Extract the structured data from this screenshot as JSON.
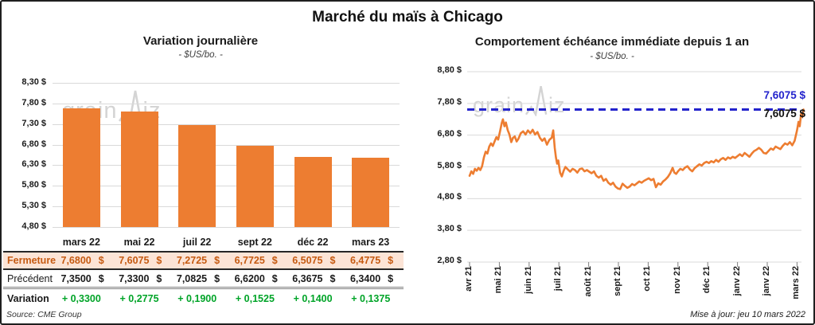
{
  "header": {
    "title": "Marché du maïs à Chicago"
  },
  "watermark": {
    "part1": "grain",
    "part2": "iz"
  },
  "source": {
    "text": "Source: CME Group"
  },
  "footer": {
    "updated": "Mise à jour: jeu 10 mars 2022"
  },
  "colors": {
    "orange": "#ED7D31",
    "grid": "#d9d9d9",
    "tick": "#7f7f7f",
    "close_bg": "#FCE4D6",
    "close_text": "#C55A11",
    "variation_green": "#00A428",
    "ref_blue": "#2323CC"
  },
  "table": {
    "columns": [
      "mars 22",
      "mai 22",
      "juil 22",
      "sept 22",
      "déc 22",
      "mars 23"
    ],
    "rows": [
      {
        "id": "close",
        "label": "Fermeture",
        "unit": "$",
        "values": [
          "7,6800",
          "7,6075",
          "7,2725",
          "6,7725",
          "6,5075",
          "6,4775"
        ]
      },
      {
        "id": "previous",
        "label": "Précédent",
        "unit": "$",
        "values": [
          "7,3500",
          "7,3300",
          "7,0825",
          "6,6200",
          "6,3675",
          "6,3400"
        ]
      },
      {
        "id": "variation",
        "label": "Variation",
        "unit": "",
        "values": [
          "+ 0,3300",
          "+ 0,2775",
          "+ 0,1900",
          "+ 0,1525",
          "+ 0,1400",
          "+ 0,1375"
        ]
      }
    ]
  },
  "chart_data": [
    {
      "type": "bar",
      "title": "Variation journalière",
      "subtitle": "- $US/bo. -",
      "categories": [
        "mars 22",
        "mai 22",
        "juil 22",
        "sept 22",
        "déc 22",
        "mars 23"
      ],
      "values": [
        7.68,
        7.6075,
        7.2725,
        6.7725,
        6.5075,
        6.4775
      ],
      "ylabel": "$US/bo.",
      "ylim": [
        4.8,
        8.3
      ],
      "y_tick_step": 0.5,
      "y_tick_labels": [
        "8,30 $",
        "7,80 $",
        "7,30 $",
        "6,80 $",
        "6,30 $",
        "5,80 $",
        "5,30 $",
        "4,80 $"
      ],
      "grid": true,
      "legend": "none"
    },
    {
      "type": "line",
      "title": "Comportement échéance immédiate depuis 1 an",
      "subtitle": "- $US/bo. -",
      "ylabel": "$US/bo.",
      "ylim": [
        2.8,
        8.8
      ],
      "y_tick_step": 1.0,
      "y_tick_labels": [
        "8,80 $",
        "7,80 $",
        "6,80 $",
        "5,80 $",
        "4,80 $",
        "3,80 $",
        "2,80 $"
      ],
      "x_tick_labels": [
        "avr 21",
        "mai 21",
        "juin 21",
        "juil 21",
        "août 21",
        "sept 21",
        "oct 21",
        "nov 21",
        "déc 21",
        "janv 22",
        "janv 22",
        "mars 22"
      ],
      "grid": true,
      "legend": "none",
      "ref_line": {
        "value": 7.6075,
        "label_above": "7,6075 $",
        "label_below": "7,6075 $"
      },
      "series": [
        {
          "name": "échéance immédiate",
          "points": [
            [
              0.0,
              5.52
            ],
            [
              0.06,
              5.66
            ],
            [
              0.12,
              5.58
            ],
            [
              0.18,
              5.74
            ],
            [
              0.24,
              5.68
            ],
            [
              0.3,
              5.77
            ],
            [
              0.36,
              5.7
            ],
            [
              0.42,
              5.82
            ],
            [
              0.48,
              6.1
            ],
            [
              0.54,
              6.28
            ],
            [
              0.6,
              6.22
            ],
            [
              0.66,
              6.44
            ],
            [
              0.72,
              6.54
            ],
            [
              0.78,
              6.46
            ],
            [
              0.84,
              6.6
            ],
            [
              0.9,
              6.74
            ],
            [
              0.96,
              6.66
            ],
            [
              1.02,
              6.9
            ],
            [
              1.08,
              7.18
            ],
            [
              1.12,
              7.3
            ],
            [
              1.17,
              7.08
            ],
            [
              1.22,
              7.2
            ],
            [
              1.28,
              6.96
            ],
            [
              1.34,
              6.82
            ],
            [
              1.4,
              6.58
            ],
            [
              1.46,
              6.72
            ],
            [
              1.52,
              6.76
            ],
            [
              1.58,
              6.6
            ],
            [
              1.64,
              6.68
            ],
            [
              1.72,
              6.86
            ],
            [
              1.8,
              6.92
            ],
            [
              1.88,
              6.82
            ],
            [
              1.96,
              6.95
            ],
            [
              2.04,
              6.86
            ],
            [
              2.12,
              6.97
            ],
            [
              2.2,
              6.82
            ],
            [
              2.28,
              6.9
            ],
            [
              2.36,
              6.72
            ],
            [
              2.44,
              6.62
            ],
            [
              2.52,
              6.7
            ],
            [
              2.6,
              6.5
            ],
            [
              2.68,
              6.65
            ],
            [
              2.76,
              6.72
            ],
            [
              2.81,
              6.95
            ],
            [
              2.86,
              6.4
            ],
            [
              2.9,
              6.1
            ],
            [
              2.94,
              5.9
            ],
            [
              2.98,
              6.0
            ],
            [
              3.04,
              5.62
            ],
            [
              3.1,
              5.5
            ],
            [
              3.16,
              5.68
            ],
            [
              3.22,
              5.8
            ],
            [
              3.3,
              5.72
            ],
            [
              3.38,
              5.65
            ],
            [
              3.46,
              5.74
            ],
            [
              3.54,
              5.7
            ],
            [
              3.62,
              5.62
            ],
            [
              3.7,
              5.73
            ],
            [
              3.78,
              5.75
            ],
            [
              3.86,
              5.66
            ],
            [
              3.94,
              5.7
            ],
            [
              4.02,
              5.65
            ],
            [
              4.1,
              5.6
            ],
            [
              4.18,
              5.66
            ],
            [
              4.26,
              5.52
            ],
            [
              4.34,
              5.46
            ],
            [
              4.42,
              5.52
            ],
            [
              4.5,
              5.36
            ],
            [
              4.58,
              5.42
            ],
            [
              4.66,
              5.3
            ],
            [
              4.74,
              5.24
            ],
            [
              4.82,
              5.3
            ],
            [
              4.9,
              5.18
            ],
            [
              4.98,
              5.12
            ],
            [
              5.06,
              5.1
            ],
            [
              5.14,
              5.27
            ],
            [
              5.22,
              5.2
            ],
            [
              5.3,
              5.14
            ],
            [
              5.38,
              5.18
            ],
            [
              5.46,
              5.26
            ],
            [
              5.54,
              5.22
            ],
            [
              5.62,
              5.28
            ],
            [
              5.7,
              5.34
            ],
            [
              5.78,
              5.3
            ],
            [
              5.86,
              5.36
            ],
            [
              5.94,
              5.4
            ],
            [
              6.02,
              5.44
            ],
            [
              6.1,
              5.38
            ],
            [
              6.18,
              5.42
            ],
            [
              6.26,
              5.16
            ],
            [
              6.34,
              5.28
            ],
            [
              6.42,
              5.24
            ],
            [
              6.5,
              5.34
            ],
            [
              6.58,
              5.4
            ],
            [
              6.66,
              5.48
            ],
            [
              6.74,
              5.6
            ],
            [
              6.82,
              5.77
            ],
            [
              6.88,
              5.62
            ],
            [
              6.94,
              5.58
            ],
            [
              7.0,
              5.66
            ],
            [
              7.08,
              5.74
            ],
            [
              7.16,
              5.7
            ],
            [
              7.24,
              5.78
            ],
            [
              7.32,
              5.82
            ],
            [
              7.4,
              5.72
            ],
            [
              7.48,
              5.66
            ],
            [
              7.56,
              5.76
            ],
            [
              7.64,
              5.82
            ],
            [
              7.72,
              5.88
            ],
            [
              7.8,
              5.84
            ],
            [
              7.88,
              5.92
            ],
            [
              7.96,
              5.96
            ],
            [
              8.04,
              5.92
            ],
            [
              8.12,
              5.98
            ],
            [
              8.2,
              5.94
            ],
            [
              8.28,
              6.02
            ],
            [
              8.36,
              5.96
            ],
            [
              8.44,
              6.04
            ],
            [
              8.52,
              6.08
            ],
            [
              8.6,
              6.02
            ],
            [
              8.68,
              6.1
            ],
            [
              8.76,
              6.06
            ],
            [
              8.84,
              6.12
            ],
            [
              8.92,
              6.08
            ],
            [
              9.0,
              6.14
            ],
            [
              9.08,
              6.2
            ],
            [
              9.16,
              6.14
            ],
            [
              9.24,
              6.24
            ],
            [
              9.32,
              6.18
            ],
            [
              9.4,
              6.12
            ],
            [
              9.48,
              6.22
            ],
            [
              9.56,
              6.3
            ],
            [
              9.64,
              6.34
            ],
            [
              9.72,
              6.4
            ],
            [
              9.8,
              6.34
            ],
            [
              9.88,
              6.24
            ],
            [
              9.96,
              6.22
            ],
            [
              10.04,
              6.3
            ],
            [
              10.12,
              6.38
            ],
            [
              10.2,
              6.34
            ],
            [
              10.28,
              6.44
            ],
            [
              10.36,
              6.4
            ],
            [
              10.44,
              6.36
            ],
            [
              10.52,
              6.46
            ],
            [
              10.6,
              6.54
            ],
            [
              10.68,
              6.5
            ],
            [
              10.76,
              6.58
            ],
            [
              10.84,
              6.48
            ],
            [
              10.92,
              6.62
            ],
            [
              11.0,
              6.95
            ],
            [
              11.05,
              7.22
            ],
            [
              11.09,
              7.08
            ],
            [
              11.14,
              7.48
            ],
            [
              11.18,
              7.38
            ],
            [
              11.22,
              7.6075
            ]
          ]
        }
      ]
    }
  ]
}
